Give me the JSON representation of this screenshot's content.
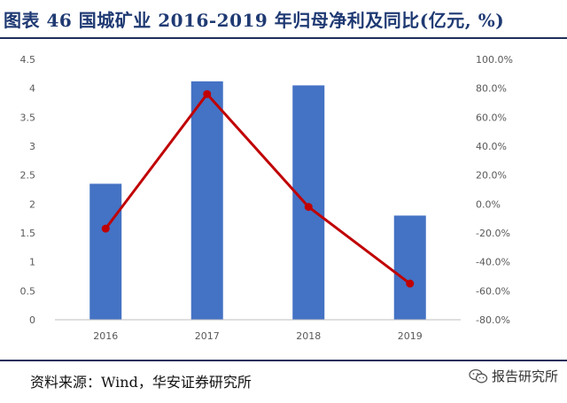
{
  "header": {
    "title": "图表 46 国城矿业 2016-2019 年归母净利及同比(亿元, %)"
  },
  "footer": {
    "source": "资料来源：Wind，华安证券研究所",
    "watermark": "报告研究所",
    "watermark_icon": "wechat-icon"
  },
  "chart_data": {
    "type": "bar",
    "categories": [
      "2016",
      "2017",
      "2018",
      "2019"
    ],
    "series": [
      {
        "kind": "bar",
        "axis": "left",
        "color": "#4472c4",
        "values": [
          2.35,
          4.12,
          4.05,
          1.8
        ]
      },
      {
        "kind": "line",
        "axis": "right",
        "color": "#c00000",
        "values": [
          -17.0,
          76.0,
          -2.0,
          -55.0
        ]
      }
    ],
    "left_axis": {
      "ylim": [
        0,
        4.5
      ],
      "ticks": [
        "0",
        "0.5",
        "1",
        "1.5",
        "2",
        "2.5",
        "3",
        "3.5",
        "4",
        "4.5"
      ]
    },
    "right_axis": {
      "ylim": [
        -80,
        100
      ],
      "ticks": [
        "-80.0%",
        "-60.0%",
        "-40.0%",
        "-20.0%",
        "0.0%",
        "20.0%",
        "40.0%",
        "60.0%",
        "80.0%",
        "100.0%"
      ]
    },
    "grid": false,
    "legend": "none"
  }
}
